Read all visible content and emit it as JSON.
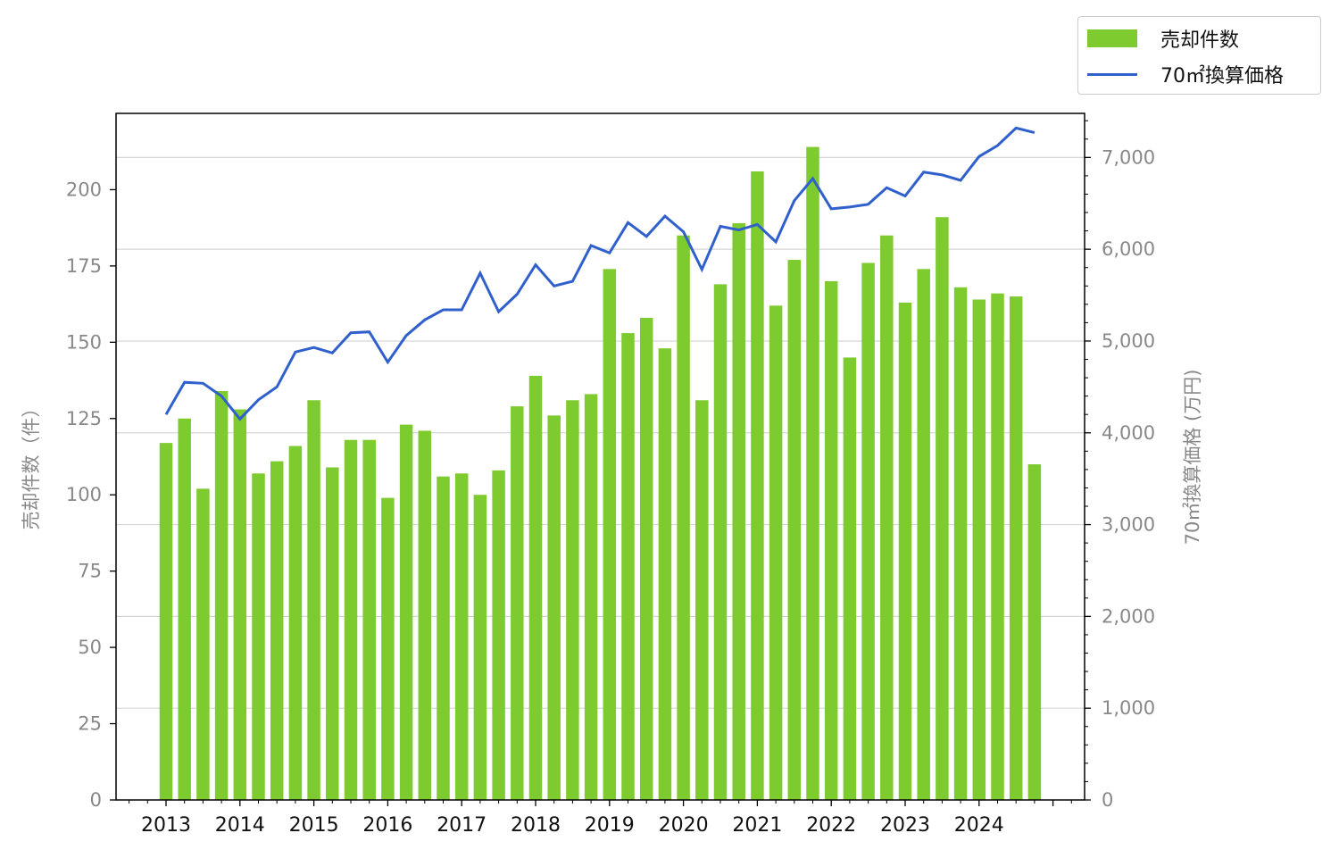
{
  "chart_data": {
    "type": "bar+line",
    "x_tick_labels": [
      "2013",
      "2014",
      "2015",
      "2016",
      "2017",
      "2018",
      "2019",
      "2020",
      "2021",
      "2022",
      "2023",
      "2024"
    ],
    "left_axis": {
      "label": "売却件数（件）",
      "ylim": [
        0,
        225
      ],
      "ticks": [
        0,
        25,
        50,
        75,
        100,
        125,
        150,
        175,
        200
      ],
      "tick_labels": [
        "0",
        "25",
        "50",
        "75",
        "100",
        "125",
        "150",
        "175",
        "200"
      ]
    },
    "right_axis": {
      "label": "70㎡換算価格 (万円)",
      "ylim": [
        0,
        7480
      ],
      "ticks": [
        0,
        1000,
        2000,
        3000,
        4000,
        5000,
        6000,
        7000
      ],
      "tick_labels": [
        "0",
        "1,000",
        "2,000",
        "3,000",
        "4,000",
        "5,000",
        "6,000",
        "7,000"
      ]
    },
    "series": [
      {
        "name": "売却件数",
        "type": "bar",
        "axis": "left",
        "color": "#7ecb30",
        "values": [
          117,
          125,
          102,
          134,
          128,
          107,
          111,
          116,
          131,
          109,
          118,
          118,
          99,
          123,
          121,
          106,
          107,
          100,
          108,
          129,
          139,
          126,
          131,
          133,
          174,
          153,
          158,
          148,
          185,
          131,
          169,
          189,
          206,
          162,
          177,
          214,
          170,
          145,
          176,
          185,
          163,
          174,
          191,
          168,
          164,
          166,
          165,
          110
        ]
      },
      {
        "name": "70㎡換算価格",
        "type": "line",
        "axis": "right",
        "color": "#3060cc",
        "values": [
          4200,
          4550,
          4540,
          4400,
          4150,
          4360,
          4500,
          4880,
          4930,
          4870,
          5090,
          5100,
          4770,
          5060,
          5230,
          5340,
          5340,
          5740,
          5320,
          5510,
          5830,
          5600,
          5650,
          6040,
          5960,
          6290,
          6140,
          6360,
          6190,
          5780,
          6250,
          6210,
          6270,
          6080,
          6530,
          6770,
          6440,
          6460,
          6490,
          6670,
          6580,
          6840,
          6810,
          6750,
          7010,
          7130,
          7320,
          7270
        ]
      }
    ],
    "legend": "top-right, outside plot",
    "grid": "horizontal, right axis"
  }
}
